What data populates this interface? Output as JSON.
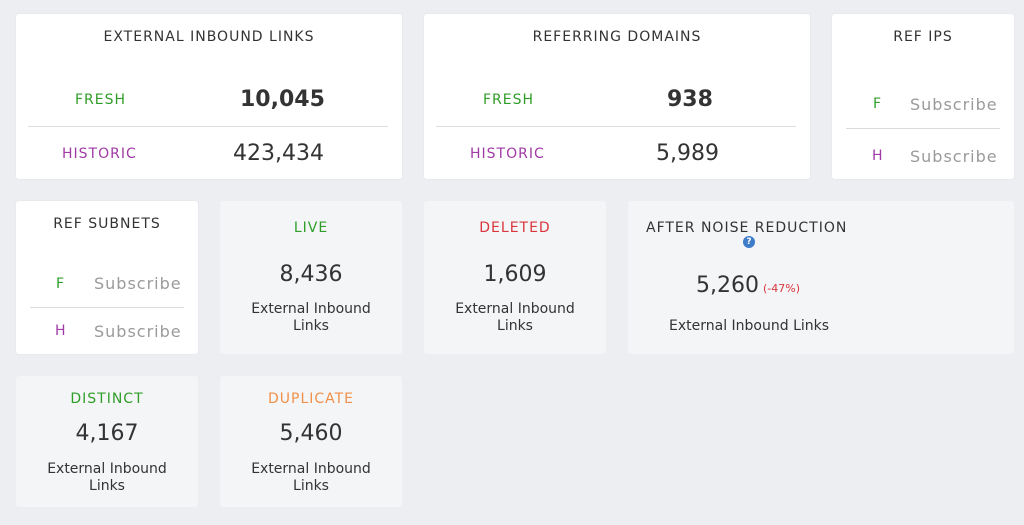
{
  "ext_inbound": {
    "title": "EXTERNAL INBOUND LINKS",
    "fresh_label": "FRESH",
    "fresh_value": "10,045",
    "historic_label": "HISTORIC",
    "historic_value": "423,434"
  },
  "ref_domains": {
    "title": "REFERRING DOMAINS",
    "fresh_label": "FRESH",
    "fresh_value": "938",
    "historic_label": "HISTORIC",
    "historic_value": "5,989"
  },
  "ref_ips": {
    "title": "REF IPS",
    "f_label": "F",
    "f_value": "Subscribe",
    "h_label": "H",
    "h_value": "Subscribe"
  },
  "ref_subnets": {
    "title": "REF SUBNETS",
    "f_label": "F",
    "f_value": "Subscribe",
    "h_label": "H",
    "h_value": "Subscribe"
  },
  "live": {
    "title": "LIVE",
    "value": "8,436",
    "caption_line1": "External Inbound",
    "caption_line2": "Links"
  },
  "deleted": {
    "title": "DELETED",
    "value": "1,609",
    "caption_line1": "External Inbound",
    "caption_line2": "Links"
  },
  "noise": {
    "title": "AFTER NOISE REDUCTION",
    "help_icon": "?",
    "value": "5,260",
    "change": "(-47%)",
    "caption": "External Inbound Links"
  },
  "distinct": {
    "title": "DISTINCT",
    "value": "4,167",
    "caption_line1": "External Inbound",
    "caption_line2": "Links"
  },
  "duplicate": {
    "title": "DUPLICATE",
    "value": "5,460",
    "caption_line1": "External Inbound",
    "caption_line2": "Links"
  },
  "colors": {
    "fresh": "#2f9e28",
    "historic": "#a03aa6",
    "deleted": "#d9363e",
    "duplicate": "#f0904a",
    "help": "#3d7cc9"
  }
}
